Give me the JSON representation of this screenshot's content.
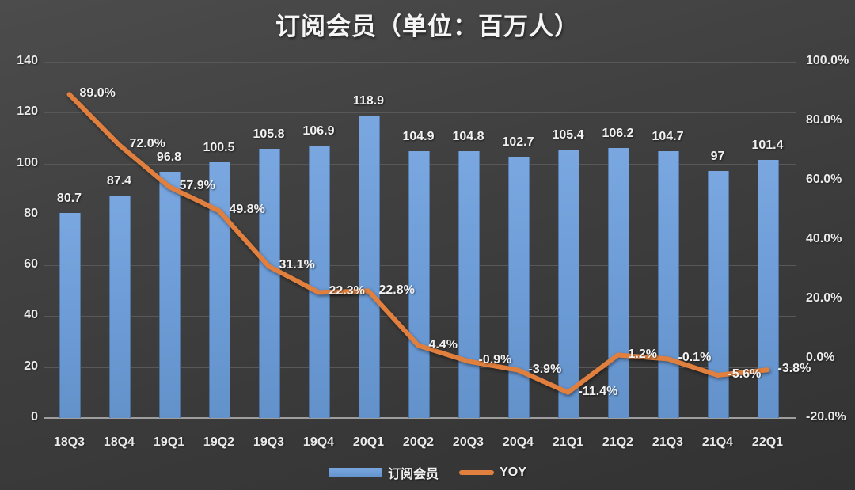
{
  "title": "订阅会员（单位：百万人）",
  "colors": {
    "background": "#3d3d3d",
    "bar_blue": "#6f9ed9",
    "line_orange": "#e07f3e",
    "gridline": "#585858",
    "axis_line": "#9e9e9e",
    "text": "#f2f2f2"
  },
  "legend": {
    "items": [
      {
        "label": "订阅会员",
        "swatch": "bar",
        "color": "#6f9ed9"
      },
      {
        "label": "YOY",
        "swatch": "line",
        "color": "#e07f3e"
      }
    ]
  },
  "chart_data": {
    "type": "bar",
    "title": "订阅会员（单位：百万人）",
    "categories": [
      "18Q3",
      "18Q4",
      "19Q1",
      "19Q2",
      "19Q3",
      "19Q4",
      "20Q1",
      "20Q2",
      "20Q3",
      "20Q4",
      "21Q1",
      "21Q2",
      "21Q3",
      "21Q4",
      "22Q1"
    ],
    "series": [
      {
        "name": "订阅会员",
        "type": "bar",
        "axis": "left",
        "color": "#6f9ed9",
        "values": [
          80.7,
          87.4,
          96.8,
          100.5,
          105.8,
          106.9,
          118.9,
          104.9,
          104.8,
          102.7,
          105.4,
          106.2,
          104.7,
          97,
          101.4
        ],
        "labels": [
          "80.7",
          "87.4",
          "96.8",
          "100.5",
          "105.8",
          "106.9",
          "118.9",
          "104.9",
          "104.8",
          "102.7",
          "105.4",
          "106.2",
          "104.7",
          "97",
          "101.4"
        ]
      },
      {
        "name": "YOY",
        "type": "line",
        "axis": "right",
        "color": "#e07f3e",
        "values": [
          89.0,
          72.0,
          57.9,
          49.8,
          31.1,
          22.3,
          22.8,
          4.4,
          -0.9,
          -3.9,
          -11.4,
          1.2,
          -0.1,
          -5.6,
          -3.8
        ],
        "labels": [
          "89.0%",
          "72.0%",
          "57.9%",
          "49.8%",
          "31.1%",
          "22.3%",
          "22.8%",
          "4.4%",
          "-0.9%",
          "-3.9%",
          "-11.4%",
          "1.2%",
          "-0.1%",
          "-5.6%",
          "-3.8%"
        ]
      }
    ],
    "left_axis": {
      "min": 0,
      "max": 140,
      "step": 20,
      "ticks": [
        "0",
        "20",
        "40",
        "60",
        "80",
        "100",
        "120",
        "140"
      ]
    },
    "right_axis": {
      "min": -20,
      "max": 100,
      "step": 20,
      "ticks": [
        "-20.0%",
        "0.0%",
        "20.0%",
        "40.0%",
        "60.0%",
        "80.0%",
        "100.0%"
      ]
    },
    "grid": true,
    "legend_position": "bottom"
  }
}
